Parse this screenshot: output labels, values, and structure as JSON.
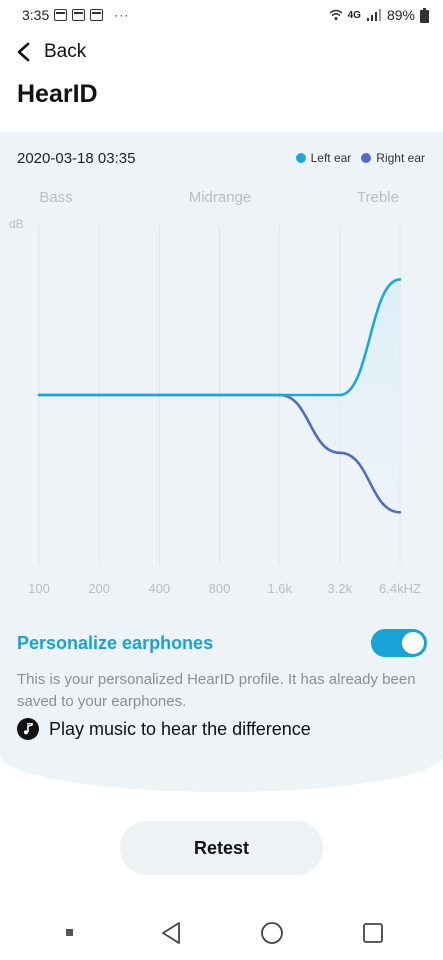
{
  "status_bar": {
    "time": "3:35",
    "left_icons": [
      "calendar-icon",
      "calendar-icon",
      "calendar-icon"
    ],
    "overflow": "···",
    "network": "4G",
    "battery": "89%"
  },
  "header": {
    "back_label": "Back",
    "title": "HearID"
  },
  "profile": {
    "date": "2020-03-18 03:35",
    "legend": [
      {
        "label": "Left ear",
        "color": "#1aa7e0"
      },
      {
        "label": "Right ear",
        "color": "#4f6cc9"
      }
    ]
  },
  "chart_data": {
    "type": "line",
    "title": "",
    "bands": [
      "Bass",
      "Midrange",
      "Treble"
    ],
    "ylabel": "dB",
    "x": [
      "100",
      "200",
      "400",
      "800",
      "1.6k",
      "3.2k",
      "6.4kHZ"
    ],
    "ylim": [
      -10,
      10
    ],
    "grid": true,
    "legend_position": "top-right",
    "series": [
      {
        "name": "Left ear",
        "color": "#1aa7e0",
        "values": [
          0,
          0,
          0,
          0,
          0,
          0,
          6.8
        ]
      },
      {
        "name": "Right ear",
        "color": "#4f6cc9",
        "values": [
          0,
          0,
          0,
          0,
          0,
          -3.4,
          -6.9
        ]
      }
    ]
  },
  "personalize": {
    "label": "Personalize earphones",
    "enabled": true,
    "description": "This is your personalized HearID profile. It has already been saved to your earphones.",
    "music_hint": "Play music to hear the difference"
  },
  "actions": {
    "retest_label": "Retest"
  }
}
